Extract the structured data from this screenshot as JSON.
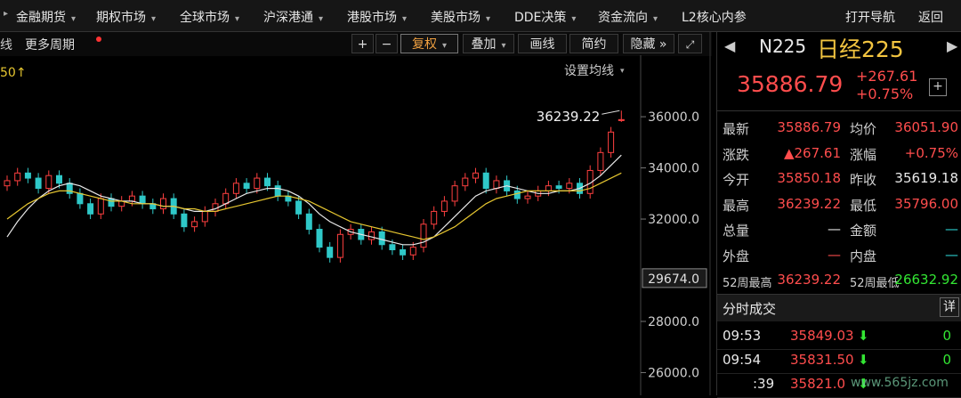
{
  "menu": {
    "items": [
      "金融期货",
      "期权市场",
      "全球市场",
      "沪深港通",
      "港股市场",
      "美股市场",
      "DDE决策",
      "资金流向",
      "L2核心内参"
    ],
    "right": [
      "打开导航",
      "返回"
    ]
  },
  "toolbar": {
    "period_tab": "线",
    "more_periods": "更多周期",
    "buttons": [
      "+",
      "−",
      "复权",
      "叠加",
      "画线",
      "简约",
      "隐藏"
    ]
  },
  "chart_data": {
    "type": "candlestick",
    "ma_label": "50↑",
    "ma_setting": "设置均线",
    "ylim": [
      25250,
      38300
    ],
    "yticks": [
      {
        "value": 26000,
        "label": "26000.0"
      },
      {
        "value": 28000,
        "label": "28000.0"
      },
      {
        "value": 32000,
        "label": "32000.0"
      },
      {
        "value": 34000,
        "label": "34000.0"
      },
      {
        "value": 36000,
        "label": "36000.0"
      }
    ],
    "cursor_price": {
      "value": 29674,
      "label": "29674.0"
    },
    "annotation": {
      "value": 36239.22,
      "label": "36239.22"
    },
    "up_color": "#ff4040",
    "down_color": "#2fc8c8",
    "ohlc": {
      "open": [
        33300,
        33500,
        33800,
        33600,
        33200,
        33700,
        33400,
        33000,
        32600,
        32200,
        32800,
        32500,
        32700,
        32900,
        32600,
        32400,
        32800,
        32200,
        31700,
        31900,
        32300,
        32600,
        33000,
        33400,
        33200,
        33600,
        33300,
        32900,
        32700,
        32200,
        31600,
        30900,
        30500,
        31400,
        31600,
        31200,
        31500,
        31000,
        30800,
        30600,
        30900,
        31800,
        32300,
        32700,
        33300,
        33600,
        33800,
        33200,
        33500,
        33100,
        32800,
        32900,
        33100,
        33300,
        33200,
        33400,
        33000,
        33900,
        34600,
        35850.18
      ],
      "high": [
        33700,
        34000,
        34000,
        33800,
        33900,
        33900,
        33600,
        33200,
        32800,
        33000,
        33000,
        32900,
        33100,
        33100,
        32800,
        33000,
        33000,
        32400,
        32100,
        32500,
        32800,
        33200,
        33600,
        33600,
        33800,
        33800,
        33500,
        33100,
        32900,
        32400,
        31800,
        31100,
        31600,
        31800,
        31800,
        31700,
        31700,
        31200,
        31000,
        31100,
        32000,
        32500,
        32900,
        33500,
        33800,
        34000,
        34000,
        33700,
        33700,
        33300,
        33100,
        33300,
        33500,
        33500,
        33600,
        33600,
        34100,
        34800,
        35600,
        36239.22
      ],
      "low": [
        33100,
        33300,
        33400,
        33000,
        33000,
        33200,
        32800,
        32400,
        32000,
        32000,
        32300,
        32300,
        32500,
        32400,
        32200,
        32200,
        32000,
        31500,
        31500,
        31700,
        32100,
        32400,
        32800,
        33000,
        33000,
        33100,
        32700,
        32500,
        32000,
        31400,
        30700,
        30300,
        30300,
        31200,
        31000,
        31000,
        30800,
        30600,
        30400,
        30400,
        30700,
        31600,
        32100,
        32500,
        33100,
        33400,
        33000,
        33000,
        32900,
        32600,
        32600,
        32700,
        32900,
        33000,
        33000,
        32800,
        32800,
        33700,
        34400,
        35796
      ],
      "close": [
        33500,
        33800,
        33600,
        33200,
        33700,
        33400,
        33000,
        32600,
        32200,
        32800,
        32500,
        32700,
        32900,
        32600,
        32400,
        32800,
        32200,
        31700,
        31900,
        32300,
        32600,
        33000,
        33400,
        33200,
        33600,
        33300,
        32900,
        32700,
        32200,
        31600,
        30900,
        30500,
        31400,
        31600,
        31200,
        31500,
        31000,
        30800,
        30600,
        30900,
        31800,
        32300,
        32700,
        33300,
        33600,
        33800,
        33200,
        33500,
        33100,
        32800,
        32900,
        33100,
        33300,
        33200,
        33400,
        33000,
        33900,
        34600,
        35400,
        35886.79
      ]
    },
    "lines": [
      {
        "color": "#e8e8e8",
        "values": [
          31300,
          31900,
          32400,
          32800,
          33100,
          33300,
          33400,
          33300,
          33100,
          32900,
          32800,
          32700,
          32700,
          32600,
          32600,
          32500,
          32500,
          32400,
          32300,
          32300,
          32400,
          32600,
          32800,
          33000,
          33100,
          33200,
          33200,
          33100,
          32900,
          32600,
          32200,
          31900,
          31700,
          31500,
          31400,
          31300,
          31200,
          31100,
          31000,
          31000,
          31100,
          31300,
          31700,
          32100,
          32500,
          32900,
          33100,
          33200,
          33300,
          33200,
          33100,
          33000,
          33000,
          33100,
          33100,
          33200,
          33400,
          33700,
          34100,
          34500
        ]
      },
      {
        "color": "#e6c630",
        "values": [
          32000,
          32300,
          32600,
          32800,
          33000,
          33100,
          33100,
          33000,
          32900,
          32800,
          32700,
          32700,
          32600,
          32600,
          32600,
          32500,
          32500,
          32400,
          32400,
          32300,
          32300,
          32400,
          32500,
          32600,
          32700,
          32800,
          32900,
          32900,
          32800,
          32700,
          32500,
          32300,
          32100,
          31900,
          31800,
          31700,
          31600,
          31500,
          31400,
          31300,
          31200,
          31300,
          31500,
          31700,
          32000,
          32300,
          32600,
          32800,
          32900,
          33000,
          33100,
          33100,
          33100,
          33100,
          33100,
          33100,
          33200,
          33400,
          33600,
          33800
        ]
      }
    ]
  },
  "quote": {
    "code": "N225",
    "name": "日经225",
    "price": "35886.79",
    "change": "+267.61",
    "pct": "+0.75%",
    "rows": [
      [
        "最新",
        "35886.79",
        "均价",
        "36051.90"
      ],
      [
        "涨跌",
        "▲267.61",
        "涨幅",
        "+0.75%"
      ],
      [
        "今开",
        "35850.18",
        "昨收",
        "35619.18"
      ],
      [
        "最高",
        "36239.22",
        "最低",
        "35796.00"
      ],
      [
        "总量",
        "—",
        "金额",
        "—"
      ],
      [
        "外盘",
        "—",
        "内盘",
        "—"
      ],
      [
        "52周最高",
        "36239.22",
        "52周最低",
        "26632.92"
      ]
    ]
  },
  "trades": {
    "title": "分时成交",
    "detail": "详",
    "rows": [
      [
        "09:53",
        "35849.03",
        "0"
      ],
      [
        "09:54",
        "35831.50",
        "0"
      ],
      [
        ":39",
        "35821.0",
        ""
      ]
    ]
  },
  "watermark": "www.565jz.com"
}
